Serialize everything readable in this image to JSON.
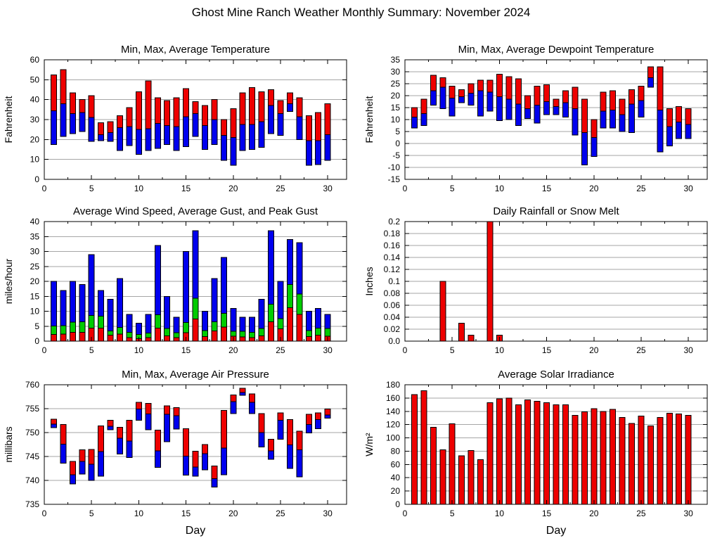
{
  "page_title": "Ghost Mine Ranch Weather Monthly Summary: November 2024",
  "colors": {
    "red": "#ee0000",
    "blue": "#0000ee",
    "green": "#00cc00",
    "grid": "#a6a6a6",
    "axis": "#000000"
  },
  "days": [
    1,
    2,
    3,
    4,
    5,
    6,
    7,
    8,
    9,
    10,
    11,
    12,
    13,
    14,
    15,
    16,
    17,
    18,
    19,
    20,
    21,
    22,
    23,
    24,
    25,
    26,
    27,
    28,
    29,
    30
  ],
  "chart_data": [
    {
      "id": "temperature",
      "type": "range",
      "title": "Min, Max, Average Temperature",
      "ylabel": "Fahrenheit",
      "xlabel": "",
      "ylim": [
        0,
        60
      ],
      "yticks": [
        0,
        10,
        20,
        30,
        40,
        50,
        60
      ],
      "ytick_labels": [
        "0",
        "10",
        "20",
        "30",
        "40",
        "50",
        "60"
      ],
      "xlim": [
        0,
        32
      ],
      "xticks": [
        0,
        5,
        10,
        15,
        20,
        25,
        30
      ],
      "grid": true,
      "legend_position": "none",
      "series": {
        "min": [
          17.5,
          21.5,
          23,
          24,
          19,
          19.5,
          19,
          14.5,
          17,
          12.5,
          14.5,
          15.5,
          17.5,
          14.5,
          16.5,
          21.5,
          15,
          17.5,
          9.5,
          7,
          14.5,
          15,
          16,
          23,
          22,
          34,
          20,
          7,
          7.5,
          9.5
        ],
        "avg": [
          34.5,
          38,
          33,
          33.5,
          31,
          22.5,
          23.5,
          26,
          26.5,
          25,
          25.5,
          28,
          27,
          26.5,
          31.5,
          33,
          27,
          30,
          22,
          21,
          27.5,
          27.5,
          29,
          37,
          33,
          38,
          31.5,
          19.5,
          19.5,
          22.5
        ],
        "max": [
          52.5,
          55,
          43.5,
          40,
          42,
          28.5,
          29,
          32,
          36,
          44,
          49.5,
          41,
          39.5,
          41,
          45.5,
          39,
          37,
          40,
          30,
          35.5,
          43.5,
          46,
          44,
          45,
          39.5,
          43.5,
          41,
          32,
          33.5,
          38
        ]
      }
    },
    {
      "id": "dewpoint",
      "type": "range",
      "title": "Min, Max, Average Dewpoint Temperature",
      "ylabel": "Fahrenheit",
      "xlabel": "",
      "ylim": [
        -15,
        35
      ],
      "yticks": [
        -15,
        -10,
        -5,
        0,
        5,
        10,
        15,
        20,
        25,
        30,
        35
      ],
      "ytick_labels": [
        "-15",
        "-10",
        "-5",
        "0",
        "5",
        "10",
        "15",
        "20",
        "25",
        "30",
        "35"
      ],
      "xlim": [
        0,
        32
      ],
      "xticks": [
        0,
        5,
        10,
        15,
        20,
        25,
        30
      ],
      "grid": true,
      "legend_position": "none",
      "series": {
        "min": [
          6.5,
          7.5,
          16,
          14.5,
          11.5,
          17,
          16,
          11.5,
          13.5,
          9.5,
          10,
          7.5,
          10.5,
          8.5,
          12,
          12,
          11,
          3.5,
          -9,
          -5.5,
          6.5,
          6.5,
          5,
          4.5,
          11,
          23.5,
          -3.5,
          -1,
          2,
          2
        ],
        "avg": [
          11,
          12.5,
          22,
          23.5,
          19,
          19.5,
          21,
          22,
          21.5,
          19.5,
          18.5,
          16.5,
          14.5,
          16,
          17.5,
          15.5,
          17,
          14.5,
          4.5,
          2.5,
          13.5,
          14,
          12,
          16.5,
          18,
          27.5,
          14,
          7,
          9,
          8
        ],
        "max": [
          15,
          18.5,
          28.5,
          27.5,
          24,
          22.5,
          25,
          26.5,
          26.5,
          29,
          28,
          27,
          20,
          24,
          24.5,
          18.5,
          22,
          23.5,
          18.5,
          10,
          21.5,
          22,
          18.5,
          22.5,
          24,
          32,
          32,
          14.5,
          15.5,
          14.5
        ]
      }
    },
    {
      "id": "wind",
      "type": "stack",
      "title": "Average Wind Speed, Average Gust, and Peak Gust",
      "ylabel": "miles/hour",
      "xlabel": "",
      "ylim": [
        0,
        40
      ],
      "yticks": [
        0,
        5,
        10,
        15,
        20,
        25,
        30,
        35,
        40
      ],
      "ytick_labels": [
        "0",
        "5",
        "10",
        "15",
        "20",
        "25",
        "30",
        "35",
        "40"
      ],
      "xlim": [
        0,
        32
      ],
      "xticks": [
        0,
        5,
        10,
        15,
        20,
        25,
        30
      ],
      "grid": true,
      "legend_position": "none",
      "series": {
        "avg_wind_speed": [
          2.2,
          2.3,
          3,
          2.9,
          4.4,
          4.4,
          2,
          2.3,
          1.2,
          0.8,
          1.2,
          4.4,
          1.8,
          1.2,
          2.8,
          7.4,
          1.5,
          3.4,
          4.7,
          1.7,
          1.4,
          1.2,
          1.8,
          6.5,
          4.1,
          11.2,
          9,
          1.5,
          2,
          1.7
        ],
        "avg_gust": [
          5.1,
          5.2,
          6.3,
          6.5,
          8.6,
          8.3,
          3.4,
          4.6,
          3,
          2.2,
          2.7,
          8.8,
          4.2,
          2.8,
          6.2,
          14.3,
          3.5,
          6.5,
          9.3,
          3.3,
          3.3,
          3,
          4.2,
          12.3,
          7.5,
          19,
          15.8,
          3.5,
          4.3,
          4.2
        ],
        "peak_gust": [
          20,
          17,
          20,
          19,
          29,
          17,
          14,
          21,
          9,
          6,
          9,
          32,
          15,
          8,
          30,
          37,
          10,
          21,
          28,
          11,
          8,
          8,
          14,
          37,
          20,
          34,
          33,
          10,
          11,
          9
        ]
      }
    },
    {
      "id": "rainfall",
      "type": "bar",
      "title": "Daily Rainfall or Snow Melt",
      "ylabel": "Inches",
      "xlabel": "",
      "ylim": [
        0,
        0.2
      ],
      "yticks": [
        0,
        0.02,
        0.04,
        0.06,
        0.08,
        0.1,
        0.12,
        0.14,
        0.16,
        0.18,
        0.2
      ],
      "ytick_labels": [
        "0.0",
        "0.02",
        "0.04",
        "0.06",
        "0.08",
        "0.1",
        "0.12",
        "0.14",
        "0.16",
        "0.18",
        "0.2"
      ],
      "xlim": [
        0,
        32
      ],
      "xticks": [
        0,
        5,
        10,
        15,
        20,
        25,
        30
      ],
      "grid": true,
      "legend_position": "none",
      "series": {
        "values": [
          0,
          0,
          0,
          0.1,
          0,
          0.03,
          0.01,
          0,
          0.2,
          0.01,
          0,
          0,
          0,
          0,
          0,
          0,
          0,
          0,
          0,
          0,
          0,
          0,
          0,
          0,
          0,
          0,
          0,
          0,
          0,
          0
        ]
      }
    },
    {
      "id": "pressure",
      "type": "range",
      "title": "Min, Max, Average Air Pressure",
      "ylabel": "millibars",
      "xlabel": "Day",
      "ylim": [
        735,
        760
      ],
      "yticks": [
        735,
        740,
        745,
        750,
        755,
        760
      ],
      "ytick_labels": [
        "735",
        "740",
        "745",
        "750",
        "755",
        "760"
      ],
      "xlim": [
        0,
        32
      ],
      "xticks": [
        0,
        5,
        10,
        15,
        20,
        25,
        30
      ],
      "grid": true,
      "legend_position": "none",
      "series": {
        "min": [
          751,
          743.6,
          739.3,
          741.3,
          740,
          740.9,
          750.6,
          745.5,
          744.8,
          752.6,
          750.6,
          742.7,
          748.1,
          750.7,
          741.1,
          740.9,
          742.2,
          738.6,
          741.2,
          754,
          757.8,
          754,
          747,
          744.4,
          748.6,
          742.5,
          740.7,
          749.9,
          750.8,
          753
        ],
        "avg": [
          751.8,
          747.6,
          741.2,
          744,
          743.4,
          746,
          751.3,
          748.8,
          748.2,
          754.9,
          753.9,
          746.2,
          753.8,
          753.5,
          745.1,
          742.8,
          745.6,
          740.4,
          746.8,
          756.5,
          758.4,
          756.3,
          750,
          746.2,
          752.6,
          747.4,
          746.4,
          751.7,
          752.7,
          753.7
        ],
        "max": [
          752.8,
          751.7,
          744,
          746.4,
          746.5,
          751.4,
          752.6,
          751.1,
          752.6,
          756.3,
          756.1,
          750.5,
          755.6,
          755.2,
          750.8,
          746.1,
          747.5,
          743,
          754.6,
          757.9,
          759.3,
          758.1,
          754,
          748.6,
          754.1,
          752.7,
          750.3,
          753.8,
          754.1,
          754.9
        ]
      }
    },
    {
      "id": "solar",
      "type": "bar",
      "title": "Average Solar Irradiance",
      "ylabel": "W/m²",
      "xlabel": "Day",
      "ylim": [
        0,
        180
      ],
      "yticks": [
        0,
        20,
        40,
        60,
        80,
        100,
        120,
        140,
        160,
        180
      ],
      "ytick_labels": [
        "0",
        "20",
        "40",
        "60",
        "80",
        "100",
        "120",
        "140",
        "160",
        "180"
      ],
      "xlim": [
        0,
        32
      ],
      "xticks": [
        0,
        5,
        10,
        15,
        20,
        25,
        30
      ],
      "grid": true,
      "legend_position": "none",
      "series": {
        "values": [
          165,
          171,
          116,
          82,
          121,
          73,
          81,
          67,
          153,
          159,
          160,
          150,
          157,
          155,
          153,
          150,
          150,
          134,
          139,
          144,
          140,
          143,
          131,
          122,
          133,
          118,
          131,
          137,
          136,
          134
        ]
      }
    }
  ]
}
